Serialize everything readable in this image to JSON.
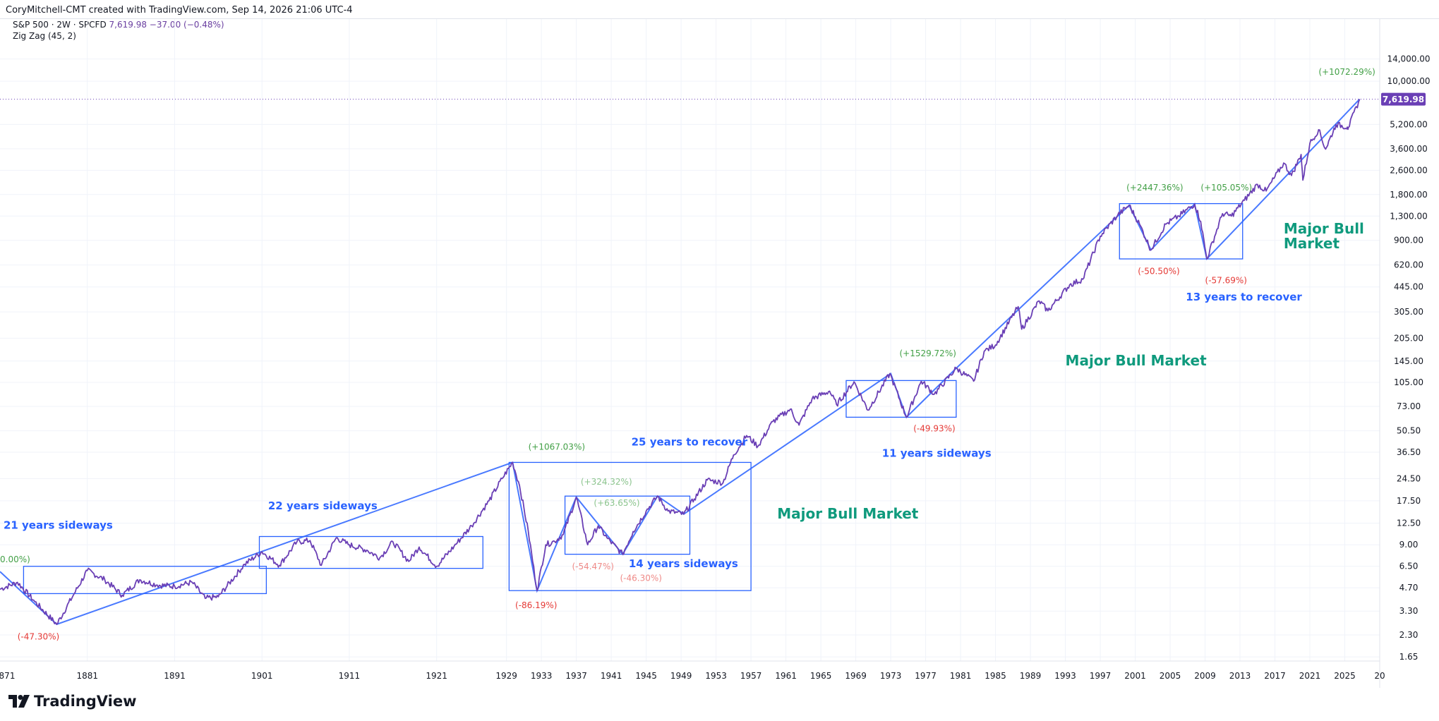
{
  "header": {
    "credit": "CoryMitchell-CMT created with TradingView.com, Sep 14, 2026 21:06 UTC-4"
  },
  "legend": {
    "symbol": "S&P 500 · 2W · SPCFD",
    "last": "7,619.98",
    "change": "−37.00 (−0.48%)",
    "indicator": "Zig Zag (45, 2)"
  },
  "brand": {
    "logo_text": "TradingView"
  },
  "colors": {
    "price": "#6a3fb5",
    "zigzag": "#2962ff",
    "up": "#43a047",
    "down": "#e53935",
    "annotation_blue": "#2962ff",
    "bull_text": "#0f9a7d",
    "badge": "#6a3fb5"
  },
  "chart_data": {
    "type": "line",
    "y_scale": "log",
    "x_range": [
      1871,
      2029
    ],
    "y_range": [
      1.2,
      19000
    ],
    "last_price_label": "7,619.98",
    "x_ticks": [
      "871",
      "1881",
      "1891",
      "1901",
      "1911",
      "1921",
      "1929",
      "1933",
      "1937",
      "1941",
      "1945",
      "1949",
      "1953",
      "1957",
      "1961",
      "1965",
      "1969",
      "1973",
      "1977",
      "1981",
      "1985",
      "1989",
      "1993",
      "1997",
      "2001",
      "2005",
      "2009",
      "2013",
      "2017",
      "2021",
      "2025",
      "20"
    ],
    "y_ticks": [
      {
        "label": "14,000.00",
        "value": 14000
      },
      {
        "label": "10,000.00",
        "value": 10000
      },
      {
        "label": "5,200.00",
        "value": 5200
      },
      {
        "label": "3,600.00",
        "value": 3600
      },
      {
        "label": "2,600.00",
        "value": 2600
      },
      {
        "label": "1,800.00",
        "value": 1800
      },
      {
        "label": "1,300.00",
        "value": 1300
      },
      {
        "label": "900.00",
        "value": 900
      },
      {
        "label": "620.00",
        "value": 620
      },
      {
        "label": "445.00",
        "value": 445
      },
      {
        "label": "305.00",
        "value": 305
      },
      {
        "label": "205.00",
        "value": 205
      },
      {
        "label": "145.00",
        "value": 145
      },
      {
        "label": "105.00",
        "value": 105
      },
      {
        "label": "73.00",
        "value": 73
      },
      {
        "label": "50.50",
        "value": 50.5
      },
      {
        "label": "36.50",
        "value": 36.5
      },
      {
        "label": "24.50",
        "value": 24.5
      },
      {
        "label": "17.50",
        "value": 17.5
      },
      {
        "label": "12.50",
        "value": 12.5
      },
      {
        "label": "9.00",
        "value": 9
      },
      {
        "label": "6.50",
        "value": 6.5
      },
      {
        "label": "4.70",
        "value": 4.7
      },
      {
        "label": "3.30",
        "value": 3.3
      },
      {
        "label": "2.30",
        "value": 2.3
      },
      {
        "label": "1.65",
        "value": 1.65
      }
    ],
    "series": [
      {
        "points": [
          [
            1871.0,
            4.6
          ],
          [
            1873.0,
            5.1
          ],
          [
            1875.0,
            3.8
          ],
          [
            1877.5,
            2.7
          ],
          [
            1879.5,
            4.3
          ],
          [
            1881.0,
            6.1
          ],
          [
            1883.0,
            5.3
          ],
          [
            1885.0,
            4.2
          ],
          [
            1887.0,
            5.3
          ],
          [
            1889.0,
            4.9
          ],
          [
            1891.0,
            4.8
          ],
          [
            1893.0,
            5.1
          ],
          [
            1894.5,
            4.0
          ],
          [
            1896.0,
            4.1
          ],
          [
            1899.0,
            6.7
          ],
          [
            1901.0,
            8.1
          ],
          [
            1903.0,
            6.6
          ],
          [
            1905.0,
            9.4
          ],
          [
            1906.5,
            9.6
          ],
          [
            1907.8,
            6.6
          ],
          [
            1909.5,
            10.0
          ],
          [
            1911.0,
            9.0
          ],
          [
            1913.0,
            8.3
          ],
          [
            1914.5,
            7.4
          ],
          [
            1916.0,
            9.4
          ],
          [
            1917.8,
            7.0
          ],
          [
            1919.0,
            8.7
          ],
          [
            1921.0,
            6.5
          ],
          [
            1923.0,
            8.8
          ],
          [
            1925.0,
            12.0
          ],
          [
            1927.0,
            17.5
          ],
          [
            1928.5,
            24.5
          ],
          [
            1929.7,
            31.3
          ],
          [
            1930.5,
            22.0
          ],
          [
            1931.5,
            11.0
          ],
          [
            1932.5,
            4.5
          ],
          [
            1933.5,
            9.0
          ],
          [
            1934.5,
            9.5
          ],
          [
            1935.5,
            10.5
          ],
          [
            1937.0,
            18.5
          ],
          [
            1938.3,
            9.0
          ],
          [
            1939.5,
            12.0
          ],
          [
            1940.5,
            10.0
          ],
          [
            1942.3,
            7.8
          ],
          [
            1943.5,
            11.0
          ],
          [
            1945.0,
            15.0
          ],
          [
            1946.3,
            18.8
          ],
          [
            1947.5,
            15.0
          ],
          [
            1949.3,
            14.3
          ],
          [
            1950.5,
            18.0
          ],
          [
            1952.0,
            24.0
          ],
          [
            1953.8,
            23.0
          ],
          [
            1955.0,
            35.0
          ],
          [
            1956.5,
            47.0
          ],
          [
            1957.8,
            40.0
          ],
          [
            1959.5,
            58.0
          ],
          [
            1961.5,
            70.0
          ],
          [
            1962.5,
            55.0
          ],
          [
            1964.0,
            82.0
          ],
          [
            1966.0,
            92.0
          ],
          [
            1966.8,
            75.0
          ],
          [
            1968.8,
            106.0
          ],
          [
            1970.4,
            69.0
          ],
          [
            1972.9,
            120.0
          ],
          [
            1974.8,
            62.0
          ],
          [
            1976.5,
            107.0
          ],
          [
            1978.0,
            88.0
          ],
          [
            1980.5,
            130.0
          ],
          [
            1982.5,
            107.0
          ],
          [
            1983.7,
            168.0
          ],
          [
            1985.0,
            185.0
          ],
          [
            1987.6,
            330.0
          ],
          [
            1988.0,
            235.0
          ],
          [
            1990.0,
            360.0
          ],
          [
            1991.0,
            310.0
          ],
          [
            1993.5,
            460.0
          ],
          [
            1995.0,
            500.0
          ],
          [
            1997.0,
            960.0
          ],
          [
            1999.0,
            1320.0
          ],
          [
            2000.3,
            1530.0
          ],
          [
            2001.5,
            1150.0
          ],
          [
            2002.8,
            780.0
          ],
          [
            2004.5,
            1150.0
          ],
          [
            2006.0,
            1300.0
          ],
          [
            2007.8,
            1560.0
          ],
          [
            2008.5,
            1200.0
          ],
          [
            2009.2,
            680.0
          ],
          [
            2011.0,
            1350.0
          ],
          [
            2012.0,
            1300.0
          ],
          [
            2013.5,
            1650.0
          ],
          [
            2015.0,
            2100.0
          ],
          [
            2016.0,
            1900.0
          ],
          [
            2018.0,
            2900.0
          ],
          [
            2018.9,
            2400.0
          ],
          [
            2020.0,
            3300.0
          ],
          [
            2020.2,
            2240.0
          ],
          [
            2021.0,
            3900.0
          ],
          [
            2022.0,
            4800.0
          ],
          [
            2022.8,
            3580.0
          ],
          [
            2024.0,
            5200.0
          ],
          [
            2025.3,
            5000.0
          ],
          [
            2025.4,
            4950.0
          ],
          [
            2026.7,
            7620.0
          ]
        ]
      }
    ],
    "zigzag": [
      [
        1871.0,
        6.0
      ],
      [
        1877.5,
        2.7
      ],
      [
        1929.7,
        31.3
      ],
      [
        1932.5,
        4.5
      ],
      [
        1937.0,
        18.5
      ],
      [
        1942.3,
        7.8
      ],
      [
        1946.3,
        18.8
      ],
      [
        1949.3,
        14.3
      ],
      [
        1973.0,
        120.0
      ],
      [
        1974.8,
        62.0
      ],
      [
        1980.5,
        130.0
      ],
      [
        2000.3,
        1530.0
      ],
      [
        2002.8,
        780.0
      ],
      [
        2007.8,
        1560.0
      ],
      [
        2009.2,
        680.0
      ],
      [
        2026.7,
        7620.0
      ]
    ],
    "boxes": [
      {
        "x0": 1873.7,
        "x1": 1901.5,
        "y0": 4.3,
        "y1": 6.5
      },
      {
        "x0": 1900.7,
        "x1": 1926.3,
        "y0": 6.3,
        "y1": 10.2
      },
      {
        "x0": 1929.3,
        "x1": 1957.0,
        "y0": 4.5,
        "y1": 31.3
      },
      {
        "x0": 1935.7,
        "x1": 1950.0,
        "y0": 7.8,
        "y1": 18.8
      },
      {
        "x0": 1967.9,
        "x1": 1980.5,
        "y0": 62.0,
        "y1": 108.0
      },
      {
        "x0": 1999.2,
        "x1": 2013.3,
        "y0": 680.0,
        "y1": 1570.0
      }
    ],
    "labels": [
      {
        "text": "(+1072.29%)",
        "x": 2022.0,
        "y": 11000,
        "type": "up"
      },
      {
        "text": "(+2447.36%)",
        "x": 2000.0,
        "y": 1920,
        "type": "up"
      },
      {
        "text": "(+105.05%)",
        "x": 2008.5,
        "y": 1920,
        "type": "up"
      },
      {
        "text": "(+1529.72%)",
        "x": 1974.0,
        "y": 156,
        "type": "up"
      },
      {
        "text": "(+1067.03%)",
        "x": 1931.5,
        "y": 38.0,
        "type": "up"
      },
      {
        "text": "(+324.32%)",
        "x": 1937.5,
        "y": 22.3,
        "type": "up_light"
      },
      {
        "text": "(+63.65%)",
        "x": 1939.0,
        "y": 16.2,
        "type": "up_light"
      },
      {
        "text": "0.00%)",
        "x": 1871.0,
        "y": 6.9,
        "type": "up"
      },
      {
        "text": "(-47.30%)",
        "x": 1873.0,
        "y": 2.15,
        "type": "down"
      },
      {
        "text": "(-86.19%)",
        "x": 1930.0,
        "y": 3.45,
        "type": "down"
      },
      {
        "text": "(-54.47%)",
        "x": 1936.5,
        "y": 6.2,
        "type": "down_light"
      },
      {
        "text": "(-46.30%)",
        "x": 1942.0,
        "y": 5.2,
        "type": "down_light"
      },
      {
        "text": "(-49.93%)",
        "x": 1975.6,
        "y": 50.0,
        "type": "down"
      },
      {
        "text": "(-50.50%)",
        "x": 2001.3,
        "y": 540,
        "type": "down"
      },
      {
        "text": "(-57.69%)",
        "x": 2009.0,
        "y": 470,
        "type": "down"
      }
    ],
    "annotations": [
      {
        "text": "21 years sideways",
        "x": 1871.4,
        "y": 11.5,
        "size": 15,
        "color": "blue"
      },
      {
        "text": "22 years sideways",
        "x": 1901.7,
        "y": 15.4,
        "size": 15,
        "color": "blue"
      },
      {
        "text": "25 years to recover",
        "x": 1943.3,
        "y": 40.5,
        "size": 15,
        "color": "blue"
      },
      {
        "text": "14 years sideways",
        "x": 1943.0,
        "y": 6.4,
        "size": 15,
        "color": "blue"
      },
      {
        "text": "11 years sideways",
        "x": 1972.0,
        "y": 34.0,
        "size": 15,
        "color": "blue"
      },
      {
        "text": "13 years to recover",
        "x": 2006.8,
        "y": 363,
        "size": 15,
        "color": "blue"
      },
      {
        "text": "Major Bull Market",
        "x": 1960.0,
        "y": 13.4,
        "size": 20,
        "color": "bull"
      },
      {
        "text": "Major Bull Market",
        "x": 1993.0,
        "y": 136,
        "size": 20,
        "color": "bull"
      },
      {
        "text": "Major Bull",
        "x": 2018.0,
        "y": 1000,
        "size": 20,
        "color": "bull"
      },
      {
        "text": "Market",
        "x": 2018.0,
        "y": 800,
        "size": 20,
        "color": "bull"
      }
    ]
  }
}
